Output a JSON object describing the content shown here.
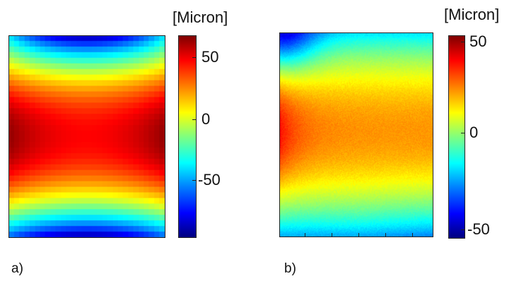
{
  "chart_data": [
    {
      "type": "heatmap",
      "panel_label": "a)",
      "colorbar_unit": "[Micron]",
      "colormap": "jet",
      "value_range": [
        -95,
        65
      ],
      "colorbar_ticks": [
        50,
        0,
        -50
      ],
      "colorbar_tick_labels": [
        "50",
        "0",
        "-50"
      ],
      "grid": false,
      "description_of_field": "saddle: high along middle rows, low at top and bottom edges",
      "sample_values": {
        "center": 45,
        "left_middle": 62,
        "right_middle": 62,
        "top_center": -90,
        "bottom_center": -90,
        "top_corners": -40,
        "bottom_corners": -55
      }
    },
    {
      "type": "heatmap",
      "panel_label": "b)",
      "colorbar_unit": "[Micron]",
      "colormap": "jet",
      "value_range": [
        -55,
        55
      ],
      "colorbar_ticks": [
        50,
        0,
        -50
      ],
      "colorbar_tick_labels": [
        "50",
        "0",
        "-50"
      ],
      "grid": false,
      "description_of_field": "smooth bump centered slightly above middle, low at top-left corner and bottom",
      "sample_values": {
        "center": 25,
        "left_middle": 40,
        "right_middle": 28,
        "top_left": -55,
        "top_center": -25,
        "bottom_center": -20,
        "bottom_right": -25
      }
    }
  ]
}
